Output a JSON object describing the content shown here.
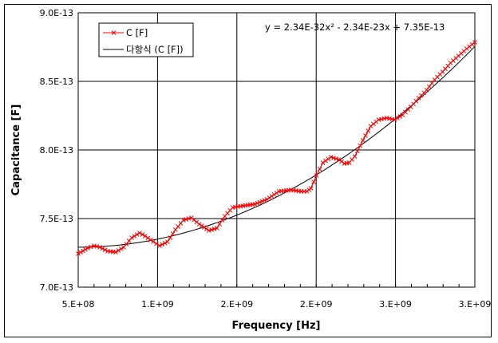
{
  "chart_data": {
    "type": "scatter",
    "title": "",
    "xlabel": "Frequency [Hz]",
    "ylabel": "Capacitance [F]",
    "xlim": [
      500000000,
      3000000000
    ],
    "ylim": [
      7e-13,
      9e-13
    ],
    "grid": true,
    "legend_position": "upper-left-inside",
    "x_tick_labels": [
      "5.E+08",
      "1.E+09",
      "2.E+09",
      "2.E+09",
      "3.E+09",
      "3.E+09"
    ],
    "x_tick_values": [
      500000000,
      1000000000,
      1500000000,
      2000000000,
      2500000000,
      3000000000
    ],
    "y_tick_labels": [
      "7.0E-13",
      "7.5E-13",
      "8.0E-13",
      "8.5E-13",
      "9.0E-13"
    ],
    "y_tick_values": [
      7e-13,
      7.5e-13,
      8e-13,
      8.5e-13,
      9e-13
    ],
    "annotations": [
      {
        "text": "y = 2.34E-32x² - 2.34E-23x + 7.35E-13",
        "position": "top-right"
      }
    ],
    "series": [
      {
        "name": "C [F]",
        "style": "line-with-x-markers",
        "color": "#ff0000",
        "x": [
          500000000.0,
          560000000.0,
          600000000.0,
          636000000.0,
          686000000.0,
          737000000.0,
          787000000.0,
          837000000.0,
          887000000.0,
          922000000.0,
          973000000.0,
          1013000000.0,
          1063000000.0,
          1113000000.0,
          1163000000.0,
          1213000000.0,
          1263000000.0,
          1324000000.0,
          1374000000.0,
          1424000000.0,
          1474000000.0,
          1539000000.0,
          1614000000.0,
          1690000000.0,
          1765000000.0,
          1841000000.0,
          1906000000.0,
          1942000000.0,
          1967000000.0,
          2002000000.0,
          2042000000.0,
          2093000000.0,
          2143000000.0,
          2178000000.0,
          2208000000.0,
          2243000000.0,
          2294000000.0,
          2344000000.0,
          2394000000.0,
          2445000000.0,
          2495000000.0,
          2545000000.0,
          2596000000.0,
          2646000000.0,
          2696000000.0,
          2746000000.0,
          2797000000.0,
          2847000000.0,
          2897000000.0,
          2948000000.0,
          3000000000.0
        ],
        "y": [
          7.244e-13,
          7.285e-13,
          7.302e-13,
          7.291e-13,
          7.262e-13,
          7.256e-13,
          7.291e-13,
          7.36e-13,
          7.395e-13,
          7.372e-13,
          7.331e-13,
          7.302e-13,
          7.331e-13,
          7.419e-13,
          7.488e-13,
          7.506e-13,
          7.459e-13,
          7.413e-13,
          7.43e-13,
          7.517e-13,
          7.581e-13,
          7.593e-13,
          7.605e-13,
          7.64e-13,
          7.698e-13,
          7.709e-13,
          7.698e-13,
          7.698e-13,
          7.721e-13,
          7.814e-13,
          7.907e-13,
          7.948e-13,
          7.93e-13,
          7.901e-13,
          7.907e-13,
          7.953e-13,
          8.07e-13,
          8.174e-13,
          8.221e-13,
          8.233e-13,
          8.221e-13,
          8.256e-13,
          8.314e-13,
          8.378e-13,
          8.436e-13,
          8.512e-13,
          8.57e-13,
          8.634e-13,
          8.686e-13,
          8.738e-13,
          8.785e-13
        ]
      },
      {
        "name": "다항식 (C [F])",
        "style": "line",
        "color": "#000000",
        "fit": "polynomial order 2",
        "coefficients": {
          "a2": 2.34e-32,
          "a1": -2.34e-23,
          "a0": 7.35e-13
        }
      }
    ]
  },
  "legend": {
    "items": [
      {
        "label": "C [F]",
        "color": "#ff0000",
        "marker": "x"
      },
      {
        "label": "다항식 (C [F])",
        "color": "#000000",
        "marker": "none"
      }
    ]
  },
  "equation": "y = 2.34E-32x² - 2.34E-23x + 7.35E-13",
  "axes": {
    "x_title": "Frequency [Hz]",
    "y_title": "Capacitance [F]"
  }
}
